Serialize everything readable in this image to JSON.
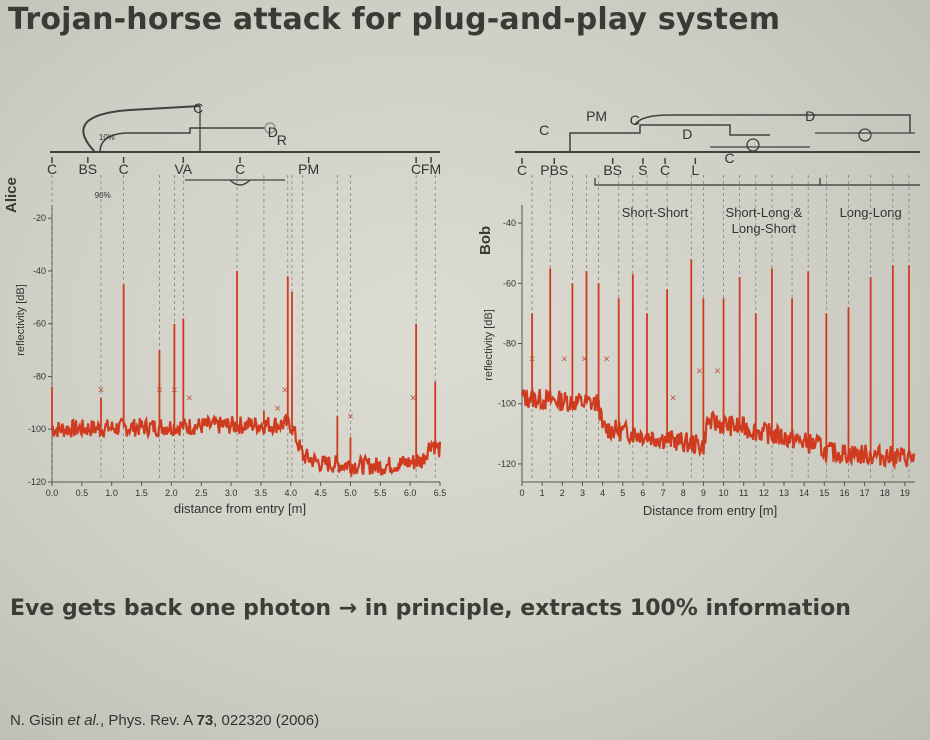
{
  "slide": {
    "title": "Trojan-horse attack for plug-and-play system",
    "statement_part1": "Eve gets back one photon",
    "statement_arrow": "→",
    "statement_part2": "in principle, extracts 100% information",
    "citation_authors": "N. Gisin",
    "citation_etal": "et al.",
    "citation_journal": ", Phys. Rev. A ",
    "citation_volume": "73",
    "citation_rest": ", 022320 (2006)"
  },
  "colors": {
    "trace": "#cf3b1e",
    "marker": "#c0503a",
    "text": "#3a3a36",
    "ink": "#404040"
  },
  "chart_data": [
    {
      "type": "line",
      "panel_label": "Alice",
      "xlabel": "distance from entry [m]",
      "ylabel": "reflectivity [dB]",
      "xlim": [
        0.0,
        6.5
      ],
      "ylim": [
        -120,
        -15
      ],
      "xticks": [
        0.0,
        0.5,
        1.0,
        1.5,
        2.0,
        2.5,
        3.0,
        3.5,
        4.0,
        4.5,
        5.0,
        5.5,
        6.0,
        6.5
      ],
      "yticks": [
        -20,
        -40,
        -60,
        -80,
        -100,
        -120
      ],
      "xtick_labels": [
        "0.0",
        "0.5",
        "1.0",
        "1.5",
        "2.0",
        "2.5",
        "3.0",
        "3.5",
        "4.0",
        "4.5",
        "5.0",
        "5.5",
        "6.0",
        "6.5"
      ],
      "ytick_labels": [
        "-20",
        "-40",
        "-60",
        "-80",
        "-100",
        "-120"
      ],
      "baseline": [
        [
          0.0,
          -100
        ],
        [
          4.0,
          -98
        ],
        [
          4.2,
          -110
        ],
        [
          4.5,
          -113
        ],
        [
          5.5,
          -114
        ],
        [
          6.2,
          -112
        ],
        [
          6.35,
          -105
        ],
        [
          6.5,
          -108
        ]
      ],
      "peaks": [
        [
          0.0,
          -84
        ],
        [
          0.82,
          -88
        ],
        [
          1.2,
          -45
        ],
        [
          1.8,
          -70
        ],
        [
          2.05,
          -60
        ],
        [
          2.2,
          -58
        ],
        [
          3.1,
          -40
        ],
        [
          3.55,
          -93
        ],
        [
          3.95,
          -42
        ],
        [
          4.02,
          -48
        ],
        [
          4.2,
          -112
        ],
        [
          4.78,
          -95
        ],
        [
          5.0,
          -103
        ],
        [
          6.1,
          -60
        ],
        [
          6.42,
          -82
        ]
      ],
      "markers_x": [
        [
          0.82,
          -85
        ],
        [
          1.8,
          -85
        ],
        [
          2.05,
          -85
        ],
        [
          2.3,
          -88
        ],
        [
          3.78,
          -92
        ],
        [
          3.9,
          -85
        ],
        [
          5.0,
          -95
        ],
        [
          6.05,
          -88
        ]
      ],
      "component_labels": [
        {
          "x": 0.0,
          "text": "C"
        },
        {
          "x": 0.6,
          "text": "BS"
        },
        {
          "x": 1.2,
          "text": "C"
        },
        {
          "x": 2.2,
          "text": "VA"
        },
        {
          "x": 3.15,
          "text": "C"
        },
        {
          "x": 4.3,
          "text": "PM"
        },
        {
          "x": 6.1,
          "text": "C"
        },
        {
          "x": 6.35,
          "text": "FM"
        }
      ],
      "annotations": [
        {
          "x": 2.45,
          "text": "C"
        },
        {
          "x": 3.7,
          "text": "D"
        },
        {
          "x": 3.85,
          "text": "R"
        },
        {
          "x": 0.85,
          "text": "90%"
        },
        {
          "x": 0.92,
          "text": "10%"
        }
      ]
    },
    {
      "type": "line",
      "panel_label": "Bob",
      "xlabel": "Distance from entry [m]",
      "ylabel": "reflectivity [dB]",
      "xlim": [
        0,
        19.5
      ],
      "ylim": [
        -126,
        -34
      ],
      "xticks": [
        0,
        1,
        2,
        3,
        4,
        5,
        6,
        7,
        8,
        9,
        10,
        11,
        12,
        13,
        14,
        15,
        16,
        17,
        18,
        19
      ],
      "yticks": [
        -40,
        -60,
        -80,
        -100,
        -120
      ],
      "xtick_labels": [
        "0",
        "1",
        "2",
        "3",
        "4",
        "5",
        "6",
        "7",
        "8",
        "9",
        "10",
        "11",
        "12",
        "13",
        "14",
        "15",
        "16",
        "17",
        "18",
        "19"
      ],
      "ytick_labels": [
        "-40",
        "-60",
        "-80",
        "-100",
        "-120"
      ],
      "baseline": [
        [
          0,
          -98
        ],
        [
          3.8,
          -100
        ],
        [
          4.0,
          -108
        ],
        [
          9.0,
          -114
        ],
        [
          9.2,
          -106
        ],
        [
          11.0,
          -108
        ],
        [
          14.8,
          -114
        ],
        [
          15.0,
          -116
        ],
        [
          19.5,
          -118
        ]
      ],
      "peaks": [
        [
          0.5,
          -70
        ],
        [
          1.4,
          -55
        ],
        [
          2.5,
          -60
        ],
        [
          3.2,
          -56
        ],
        [
          3.8,
          -60
        ],
        [
          4.8,
          -65
        ],
        [
          5.5,
          -57
        ],
        [
          6.2,
          -70
        ],
        [
          7.2,
          -62
        ],
        [
          8.4,
          -52
        ],
        [
          9.0,
          -65
        ],
        [
          10.0,
          -65
        ],
        [
          10.8,
          -58
        ],
        [
          11.6,
          -70
        ],
        [
          12.4,
          -55
        ],
        [
          13.4,
          -65
        ],
        [
          14.2,
          -56
        ],
        [
          15.1,
          -70
        ],
        [
          16.2,
          -68
        ],
        [
          17.3,
          -58
        ],
        [
          18.4,
          -54
        ],
        [
          19.2,
          -54
        ]
      ],
      "markers_x": [
        [
          0.5,
          -85
        ],
        [
          2.1,
          -85
        ],
        [
          3.1,
          -85
        ],
        [
          4.2,
          -85
        ],
        [
          7.5,
          -98
        ],
        [
          8.8,
          -89
        ],
        [
          9.7,
          -89
        ]
      ],
      "component_labels": [
        {
          "x": 0,
          "text": "C"
        },
        {
          "x": 1.6,
          "text": "PBS"
        },
        {
          "x": 4.5,
          "text": "BS"
        },
        {
          "x": 6.0,
          "text": "S"
        },
        {
          "x": 7.1,
          "text": "C"
        },
        {
          "x": 8.6,
          "text": "L"
        }
      ],
      "annotations": [
        {
          "x": 1.1,
          "text": "C"
        },
        {
          "x": 3.7,
          "text": "PM"
        },
        {
          "x": 5.6,
          "text": "C"
        },
        {
          "x": 8.2,
          "text": "D"
        },
        {
          "x": 14.3,
          "text": "D"
        },
        {
          "x": 10.3,
          "text": "C"
        }
      ],
      "region_labels": [
        {
          "x": 6.6,
          "text": "Short-Short"
        },
        {
          "x": 12.0,
          "text": "Short-Long &"
        },
        {
          "x": 12.0,
          "text": "Long-Short"
        },
        {
          "x": 17.3,
          "text": "Long-Long"
        }
      ]
    }
  ]
}
